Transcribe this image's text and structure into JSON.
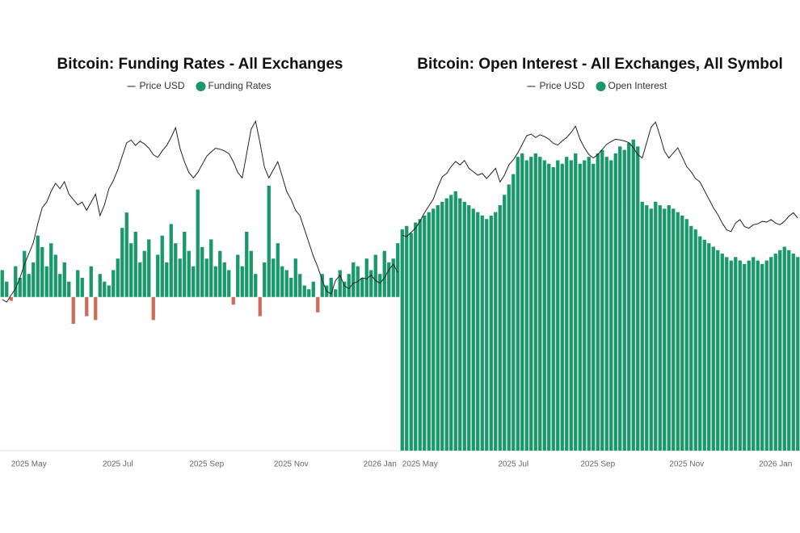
{
  "chart_data": [
    {
      "type": "combo",
      "title": "Bitcoin: Funding Rates - All Exchanges",
      "categories": [
        null,
        null,
        null,
        null,
        null,
        null,
        "2025 May",
        null,
        null,
        null,
        null,
        null,
        null,
        null,
        null,
        null,
        null,
        null,
        null,
        null,
        null,
        null,
        null,
        null,
        null,
        null,
        "2025 Jul",
        null,
        null,
        null,
        null,
        null,
        null,
        null,
        null,
        null,
        null,
        null,
        null,
        null,
        null,
        null,
        null,
        null,
        null,
        null,
        "2025 Sep",
        null,
        null,
        null,
        null,
        null,
        null,
        null,
        null,
        null,
        null,
        null,
        null,
        null,
        null,
        null,
        null,
        null,
        null,
        "2025 Nov",
        null,
        null,
        null,
        null,
        null,
        null,
        null,
        null,
        null,
        null,
        null,
        null,
        null,
        null,
        null,
        null,
        null,
        null,
        null,
        "2026 Jan",
        null,
        null,
        null,
        null
      ],
      "ylim": [
        -0.02,
        0.025
      ],
      "y2lim": [
        65000,
        129000
      ],
      "series": [
        {
          "name": "Price USD",
          "type": "line",
          "axis": "y2",
          "color": "#222222",
          "values": [
            93000,
            92500,
            93800,
            95000,
            97000,
            99500,
            101500,
            103500,
            107000,
            110000,
            111000,
            113000,
            114500,
            113500,
            114800,
            112500,
            111500,
            110500,
            111000,
            109500,
            111000,
            112500,
            108500,
            110500,
            113500,
            115000,
            117000,
            119500,
            122000,
            122500,
            121500,
            122300,
            121800,
            121000,
            119800,
            119300,
            120500,
            121500,
            123000,
            124800,
            121000,
            118500,
            116500,
            115500,
            116500,
            118000,
            119500,
            120300,
            121000,
            120800,
            120500,
            120000,
            118500,
            116500,
            115500,
            120000,
            124500,
            126000,
            122000,
            117500,
            115500,
            117000,
            118500,
            115800,
            113000,
            111500,
            109500,
            108500,
            106000,
            103500,
            101000,
            99000,
            96500,
            94500,
            94000,
            96500,
            97500,
            95500,
            95000,
            96000,
            96300,
            97000,
            96800,
            97500,
            96500,
            96000,
            97000,
            98500,
            99500,
            98000
          ]
        },
        {
          "name": "Funding Rates",
          "type": "bar",
          "axis": "y",
          "color": "#17996a",
          "negative_color": "#cf6b5d",
          "values": [
            0.0035,
            0.002,
            -0.0005,
            0.004,
            0.0025,
            0.006,
            0.003,
            0.0045,
            0.008,
            0.0065,
            0.004,
            0.007,
            0.0055,
            0.003,
            0.0045,
            0.002,
            -0.0035,
            0.0035,
            0.0025,
            -0.0025,
            0.004,
            -0.003,
            0.003,
            0.002,
            0.0015,
            0.0035,
            0.005,
            0.009,
            0.011,
            0.007,
            0.0085,
            0.0045,
            0.006,
            0.0075,
            -0.003,
            0.0055,
            0.008,
            0.0045,
            0.0095,
            0.007,
            0.005,
            0.0085,
            0.006,
            0.004,
            0.014,
            0.0065,
            0.005,
            0.0075,
            0.004,
            0.006,
            0.0045,
            0.0035,
            -0.001,
            0.0055,
            0.004,
            0.0085,
            0.006,
            0.003,
            -0.0025,
            0.0045,
            0.0145,
            0.005,
            0.007,
            0.004,
            0.0035,
            0.0025,
            0.005,
            0.003,
            0.0015,
            0.001,
            0.002,
            -0.002,
            0.003,
            0.0015,
            0.0025,
            0.001,
            0.0035,
            0.002,
            0.003,
            0.0045,
            0.004,
            0.0025,
            0.005,
            0.0035,
            0.0055,
            0.003,
            0.006,
            0.0045,
            0.005,
            0.007
          ]
        }
      ]
    },
    {
      "type": "combo",
      "title": "Bitcoin: Open Interest - All Exchanges, All Symbol",
      "categories": [
        null,
        null,
        null,
        null,
        "2025 May",
        null,
        null,
        null,
        null,
        null,
        null,
        null,
        null,
        null,
        null,
        null,
        null,
        null,
        null,
        null,
        null,
        null,
        null,
        null,
        null,
        "2025 Jul",
        null,
        null,
        null,
        null,
        null,
        null,
        null,
        null,
        null,
        null,
        null,
        null,
        null,
        null,
        null,
        null,
        null,
        null,
        "2025 Sep",
        null,
        null,
        null,
        null,
        null,
        null,
        null,
        null,
        null,
        null,
        null,
        null,
        null,
        null,
        null,
        null,
        null,
        null,
        null,
        "2025 Nov",
        null,
        null,
        null,
        null,
        null,
        null,
        null,
        null,
        null,
        null,
        null,
        null,
        null,
        null,
        null,
        null,
        null,
        null,
        null,
        "2026 Jan",
        null,
        null,
        null,
        null,
        null
      ],
      "ylim": [
        0,
        100
      ],
      "y2lim": [
        30000,
        131000
      ],
      "series": [
        {
          "name": "Price USD",
          "type": "line",
          "axis": "y2",
          "color": "#222222",
          "values": [
            93000,
            92500,
            93800,
            95000,
            97000,
            99500,
            101500,
            103500,
            107000,
            110000,
            111000,
            113000,
            114500,
            113500,
            114800,
            112500,
            111500,
            110500,
            111000,
            109500,
            111000,
            112500,
            108500,
            110500,
            113500,
            115000,
            117000,
            119500,
            122000,
            122500,
            121500,
            122300,
            121800,
            121000,
            119800,
            119300,
            120500,
            121500,
            123000,
            124800,
            121000,
            118500,
            116500,
            115500,
            116500,
            118000,
            119500,
            120300,
            121000,
            120800,
            120500,
            120000,
            118500,
            116500,
            115500,
            120000,
            124500,
            126000,
            122000,
            117500,
            115500,
            117000,
            118500,
            115800,
            113000,
            111500,
            109500,
            108500,
            106000,
            103500,
            101000,
            99000,
            96500,
            94500,
            94000,
            96500,
            97500,
            95500,
            95000,
            96000,
            96300,
            97000,
            96800,
            97500,
            96500,
            96000,
            97000,
            98500,
            99500,
            98000
          ]
        },
        {
          "name": "Open Interest",
          "type": "bar",
          "axis": "y",
          "color": "#17996a",
          "values": [
            64,
            65,
            63,
            66,
            67,
            68,
            69,
            70,
            71,
            72,
            73,
            74,
            75,
            73,
            72,
            71,
            70,
            69,
            68,
            67,
            68,
            69,
            71,
            74,
            77,
            80,
            85,
            86,
            84,
            85,
            86,
            85,
            84,
            83,
            82,
            84,
            83,
            85,
            84,
            86,
            83,
            84,
            85,
            83,
            86,
            87,
            85,
            84,
            86,
            88,
            87,
            89,
            90,
            88,
            72,
            71,
            70,
            72,
            71,
            70,
            71,
            70,
            69,
            68,
            67,
            65,
            64,
            62,
            61,
            60,
            59,
            58,
            57,
            56,
            55,
            56,
            55,
            54,
            55,
            56,
            55,
            54,
            55,
            56,
            57,
            58,
            59,
            58,
            57,
            56
          ]
        }
      ]
    }
  ]
}
